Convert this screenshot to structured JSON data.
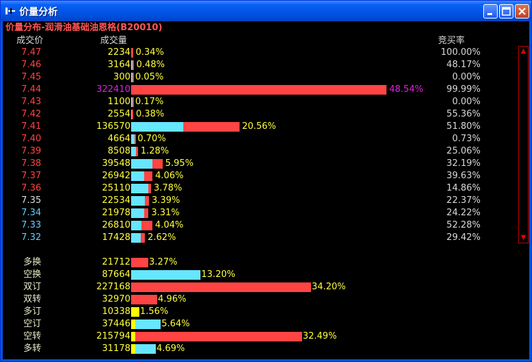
{
  "window": {
    "title": "价量分析"
  },
  "header": {
    "title": "价量分布-润滑油基础油恩格(B20010)",
    "col_price": "成交价",
    "col_volume": "成交量",
    "col_rate": "竞买率"
  },
  "colors": {
    "buy": "#ff4444",
    "sell": "#66e6ff",
    "neutral": "#ffff00",
    "up": "#ff4444",
    "flat": "#dddddd",
    "down": "#66ccff",
    "percent": "#ffff3c",
    "max_highlight": "#e020e0"
  },
  "rows": [
    {
      "price": "7.47",
      "volume": "2234",
      "volume_value": 2234,
      "pct": "0.34%",
      "rate": "100.00%",
      "rate_value": 1.0,
      "dir": "up"
    },
    {
      "price": "7.46",
      "volume": "3164",
      "volume_value": 3164,
      "pct": "0.48%",
      "rate": "48.17%",
      "rate_value": 0.4817,
      "dir": "up"
    },
    {
      "price": "7.45",
      "volume": "300",
      "volume_value": 300,
      "pct": "0.05%",
      "rate": "0.00%",
      "rate_value": 0.0,
      "dir": "up"
    },
    {
      "price": "7.44",
      "volume": "322410",
      "volume_value": 322410,
      "pct": "48.54%",
      "rate": "99.99%",
      "rate_value": 0.9999,
      "dir": "up",
      "highlight": true
    },
    {
      "price": "7.43",
      "volume": "1100",
      "volume_value": 1100,
      "pct": "0.17%",
      "rate": "0.00%",
      "rate_value": 0.0,
      "dir": "up"
    },
    {
      "price": "7.42",
      "volume": "2554",
      "volume_value": 2554,
      "pct": "0.38%",
      "rate": "55.36%",
      "rate_value": 0.5536,
      "dir": "up"
    },
    {
      "price": "7.41",
      "volume": "136570",
      "volume_value": 136570,
      "pct": "20.56%",
      "rate": "51.80%",
      "rate_value": 0.518,
      "dir": "up"
    },
    {
      "price": "7.40",
      "volume": "4664",
      "volume_value": 4664,
      "pct": "0.70%",
      "rate": "0.73%",
      "rate_value": 0.0073,
      "dir": "up"
    },
    {
      "price": "7.39",
      "volume": "8508",
      "volume_value": 8508,
      "pct": "1.28%",
      "rate": "25.06%",
      "rate_value": 0.2506,
      "dir": "up"
    },
    {
      "price": "7.38",
      "volume": "39548",
      "volume_value": 39548,
      "pct": "5.95%",
      "rate": "32.19%",
      "rate_value": 0.3219,
      "dir": "up"
    },
    {
      "price": "7.37",
      "volume": "26942",
      "volume_value": 26942,
      "pct": "4.06%",
      "rate": "39.63%",
      "rate_value": 0.3963,
      "dir": "up"
    },
    {
      "price": "7.36",
      "volume": "25110",
      "volume_value": 25110,
      "pct": "3.78%",
      "rate": "14.86%",
      "rate_value": 0.1486,
      "dir": "up"
    },
    {
      "price": "7.35",
      "volume": "22534",
      "volume_value": 22534,
      "pct": "3.39%",
      "rate": "22.37%",
      "rate_value": 0.2237,
      "dir": "flat"
    },
    {
      "price": "7.34",
      "volume": "21978",
      "volume_value": 21978,
      "pct": "3.31%",
      "rate": "24.22%",
      "rate_value": 0.2422,
      "dir": "down"
    },
    {
      "price": "7.33",
      "volume": "26810",
      "volume_value": 26810,
      "pct": "4.04%",
      "rate": "52.28%",
      "rate_value": 0.5228,
      "dir": "down"
    },
    {
      "price": "7.32",
      "volume": "17428",
      "volume_value": 17428,
      "pct": "2.62%",
      "rate": "29.42%",
      "rate_value": 0.2942,
      "dir": "down"
    }
  ],
  "stats": [
    {
      "label": "多换",
      "volume": "21712",
      "volume_value": 21712,
      "pct": "3.27%",
      "color": "buy"
    },
    {
      "label": "空换",
      "volume": "87664",
      "volume_value": 87664,
      "pct": "13.20%",
      "color": "sell"
    },
    {
      "label": "双订",
      "volume": "227168",
      "volume_value": 227168,
      "pct": "34.20%",
      "color": "buy"
    },
    {
      "label": "双转",
      "volume": "32970",
      "volume_value": 32970,
      "pct": "4.96%",
      "color": "buy"
    },
    {
      "label": "多订",
      "volume": "10338",
      "volume_value": 10338,
      "pct": "1.56%",
      "color": "neutral"
    },
    {
      "label": "空订",
      "volume": "37446",
      "volume_value": 37446,
      "pct": "5.64%",
      "color": "neutral_sell"
    },
    {
      "label": "空转",
      "volume": "215794",
      "volume_value": 215794,
      "pct": "32.49%",
      "color": "neutral_buy"
    },
    {
      "label": "多转",
      "volume": "31178",
      "volume_value": 31178,
      "pct": "4.69%",
      "color": "neutral_sell"
    }
  ]
}
